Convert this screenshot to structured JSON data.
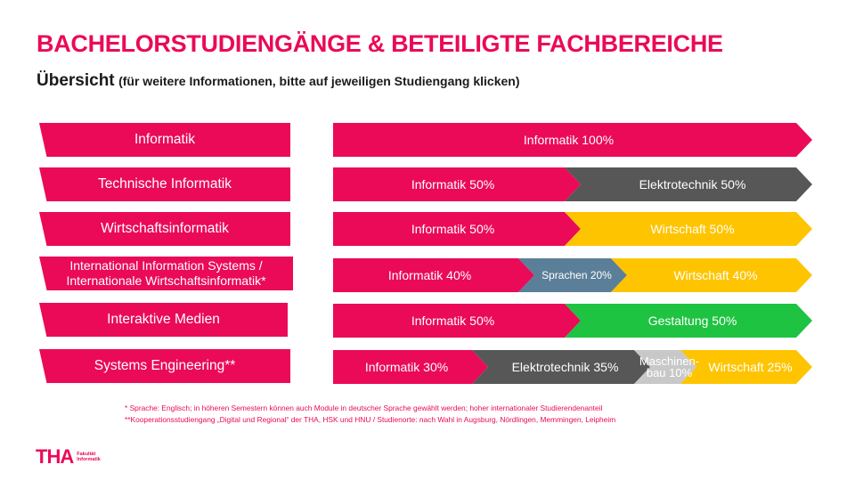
{
  "title": "BACHELORSTUDIENGÄNGE & BETEILIGTE FACHBEREICHE",
  "subtitle": {
    "main": "Übersicht",
    "note": "(für weitere Informationen, bitte auf jeweiligen Studiengang klicken)"
  },
  "colors": {
    "informatik": "#ea0a58",
    "elektrotechnik": "#575757",
    "wirtschaft": "#ffc400",
    "sprachen": "#5b7f99",
    "gestaltung": "#1ec341",
    "maschinenbau": "#c8c8c8"
  },
  "programs": [
    {
      "name": "Informatik",
      "segments": [
        {
          "label": "Informatik 100%",
          "share": 100,
          "color": "informatik",
          "text_color": "#ffffff"
        }
      ]
    },
    {
      "name": "Technische Informatik",
      "segments": [
        {
          "label": "Informatik 50%",
          "share": 50,
          "color": "informatik",
          "text_color": "#ffffff"
        },
        {
          "label": "Elektrotechnik 50%",
          "share": 50,
          "color": "elektrotechnik",
          "text_color": "#ffffff"
        }
      ]
    },
    {
      "name": "Wirtschaftsinformatik",
      "segments": [
        {
          "label": "Informatik 50%",
          "share": 50,
          "color": "informatik",
          "text_color": "#ffffff"
        },
        {
          "label": "Wirtschaft 50%",
          "share": 50,
          "color": "wirtschaft",
          "text_color": "#ffffff"
        }
      ]
    },
    {
      "name": "International Information Systems / Internationale Wirtschaftsinformatik*",
      "segments": [
        {
          "label": "Informatik 40%",
          "share": 40,
          "color": "informatik",
          "text_color": "#ffffff"
        },
        {
          "label": "Sprachen 20%",
          "share": 20,
          "color": "sprachen",
          "text_color": "#ffffff"
        },
        {
          "label": "Wirtschaft 40%",
          "share": 40,
          "color": "wirtschaft",
          "text_color": "#ffffff"
        }
      ]
    },
    {
      "name": "Interaktive Medien",
      "segments": [
        {
          "label": "Informatik 50%",
          "share": 50,
          "color": "informatik",
          "text_color": "#ffffff"
        },
        {
          "label": "Gestaltung 50%",
          "share": 50,
          "color": "gestaltung",
          "text_color": "#ffffff"
        }
      ]
    },
    {
      "name": "Systems Engineering**",
      "segments": [
        {
          "label": "Informatik 30%",
          "share": 30,
          "color": "informatik",
          "text_color": "#ffffff"
        },
        {
          "label": "Elektrotechnik 35%",
          "share": 35,
          "color": "elektrotechnik",
          "text_color": "#ffffff"
        },
        {
          "label": "Maschinen-bau 10%",
          "share": 10,
          "color": "maschinenbau",
          "text_color": "#ffffff"
        },
        {
          "label": "Wirtschaft 25%",
          "share": 25,
          "color": "wirtschaft",
          "text_color": "#ffffff"
        }
      ]
    }
  ],
  "footnotes": [
    "* Sprache: Englisch; in höheren Semestern können auch Module in deutscher Sprache gewählt werden; hoher internationaler Studierendenanteil",
    "**Kooperationsstudiengang „Digital und Regional“ der THA, HSK und HNU / Studienorte: nach Wahl in Augsburg, Nördlingen, Memmingen, Leipheim"
  ],
  "logo": {
    "mark": "THA",
    "line1": "Fakultät",
    "line2": "Informatik"
  }
}
